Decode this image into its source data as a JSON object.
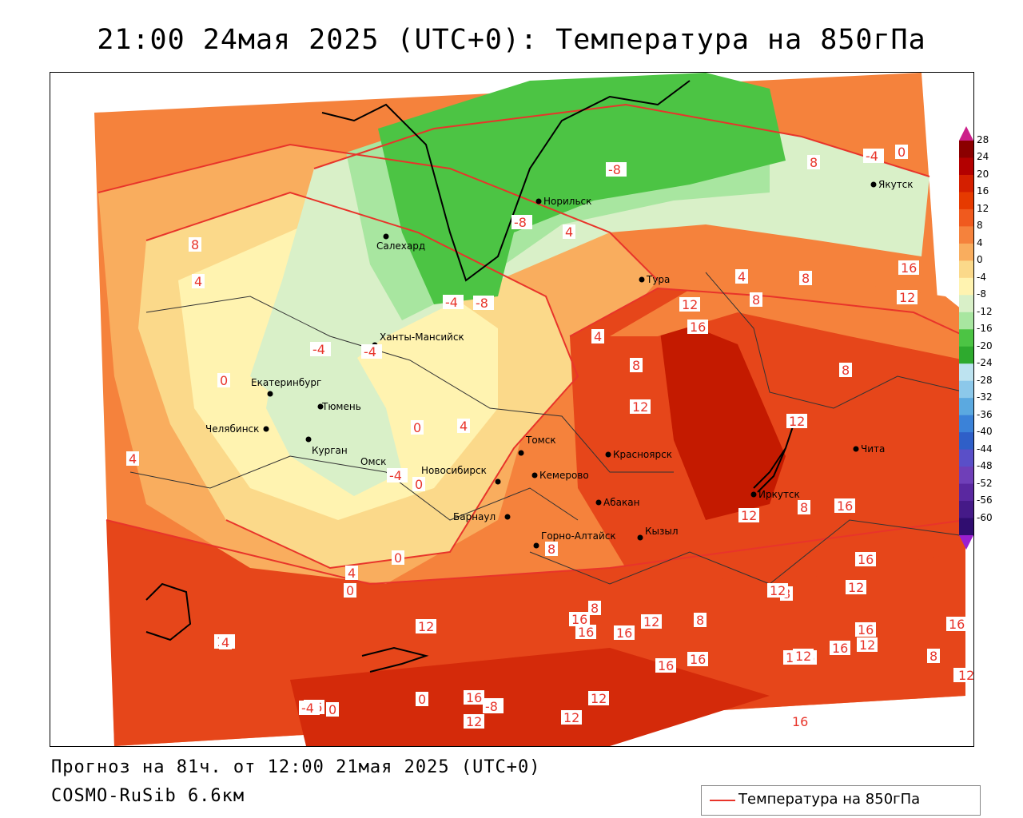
{
  "title": "21:00 24мая 2025 (UTC+0): Температура на 850гПа",
  "footer": {
    "forecast": "Прогноз на 81ч. от 12:00 21мая 2025 (UTC+0)",
    "model": "COSMO-RuSib 6.6км"
  },
  "legend": {
    "label": "Температура на 850гПа",
    "line_color": "#e8342a"
  },
  "colorbar": {
    "labels": [
      "28",
      "24",
      "20",
      "16",
      "12",
      "8",
      "4",
      "0",
      "-4",
      "-8",
      "-12",
      "-16",
      "-20",
      "-24",
      "-28",
      "-32",
      "-36",
      "-40",
      "-44",
      "-48",
      "-52",
      "-56",
      "-60"
    ],
    "colors": [
      "#8b0000",
      "#b30000",
      "#d41f00",
      "#e63a00",
      "#f05a1e",
      "#f5823c",
      "#f9ad5e",
      "#fbd98a",
      "#fff3b0",
      "#d9f0c8",
      "#a8e6a0",
      "#4cc444",
      "#2eaa2e",
      "#bde3f0",
      "#8cc8ea",
      "#5ba9e0",
      "#3b82d8",
      "#2f5fc8",
      "#5a4fc8",
      "#6f3fb8",
      "#5a28a0",
      "#451a88",
      "#300d70"
    ]
  },
  "cities": [
    {
      "name": "Салехард"
    },
    {
      "name": "Норильск"
    },
    {
      "name": "Якутск"
    },
    {
      "name": "Тура"
    },
    {
      "name": "Ханты-Мансийск"
    },
    {
      "name": "Екатеринбург"
    },
    {
      "name": "Тюмень"
    },
    {
      "name": "Челябинск"
    },
    {
      "name": "Курган"
    },
    {
      "name": "Омск"
    },
    {
      "name": "Новосибирск"
    },
    {
      "name": "Томск"
    },
    {
      "name": "Кемерово"
    },
    {
      "name": "Барнаул"
    },
    {
      "name": "Красноярск"
    },
    {
      "name": "Абакан"
    },
    {
      "name": "Горно-Алтайск"
    },
    {
      "name": "Кызыл"
    },
    {
      "name": "Иркутск"
    },
    {
      "name": "Чита"
    }
  ],
  "isotherm_labels": [
    "8",
    "4",
    "0",
    "4",
    "-4",
    "0",
    "4",
    "0",
    "-4",
    "0",
    "4",
    "0",
    "-4",
    "4",
    "8",
    "12",
    "16",
    "8",
    "-4",
    "-8",
    "-8",
    "-4",
    "0",
    "4",
    "8",
    "12",
    "16",
    "8",
    "12",
    "8",
    "12",
    "16",
    "12",
    "12",
    "8",
    "16",
    "12",
    "16",
    "8",
    "16",
    "12",
    "8",
    "16",
    "12",
    "12",
    "16",
    "16",
    "12",
    "12",
    "16",
    "16",
    "12",
    "16",
    "12",
    "8",
    "12",
    "12",
    "16",
    "16",
    "12",
    "16",
    "-8",
    "-4",
    "0",
    "4",
    "0",
    "-8",
    "4",
    "8",
    "12",
    "8",
    "16",
    "12"
  ]
}
